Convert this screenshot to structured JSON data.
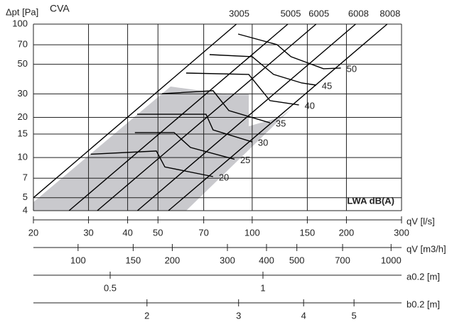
{
  "chart_data": {
    "type": "line",
    "title": "CVA",
    "ylabel": "Δpt [Pa]",
    "xlabel": "qV [l/s]",
    "annotation": "LWA dB(A)",
    "xscale": "log",
    "yscale": "log",
    "grid": true,
    "color": "#000000",
    "xlim": [
      20,
      300
    ],
    "ylim": [
      4,
      100
    ],
    "xticks": [
      20,
      30,
      40,
      50,
      70,
      100,
      150,
      200,
      300
    ],
    "yticks": [
      4,
      5,
      7,
      10,
      15,
      20,
      30,
      50,
      70,
      100
    ],
    "series": [
      {
        "name": "3005",
        "x": [
          20,
          89
        ],
        "values": [
          5,
          100
        ]
      },
      {
        "name": "5005",
        "x": [
          26,
          130
        ],
        "values": [
          4,
          100
        ]
      },
      {
        "name": "6005",
        "x": [
          32,
          160
        ],
        "values": [
          4,
          100
        ]
      },
      {
        "name": "6008",
        "x": [
          43,
          214
        ],
        "values": [
          4,
          100
        ]
      },
      {
        "name": "8008",
        "x": [
          54,
          270
        ],
        "values": [
          4,
          100
        ]
      }
    ],
    "contours": [
      {
        "name": "20",
        "x": [
          30.5,
          49.4,
          52.6,
          75.0
        ],
        "values": [
          10.6,
          11.2,
          8.5,
          7.2
        ]
      },
      {
        "name": "25",
        "x": [
          42.2,
          56.3,
          63.5,
          87.8
        ],
        "values": [
          15.4,
          15.4,
          11.9,
          9.7
        ]
      },
      {
        "name": "30",
        "x": [
          42.9,
          71.2,
          75.0,
          100
        ],
        "values": [
          21.1,
          21.1,
          16.1,
          13.1
        ]
      },
      {
        "name": "35",
        "x": [
          51.5,
          75.0,
          84.2,
          114
        ],
        "values": [
          30.1,
          31.7,
          22.5,
          18.2
        ]
      },
      {
        "name": "40",
        "x": [
          61.5,
          97.5,
          114,
          141
        ],
        "values": [
          43.0,
          42.0,
          26.7,
          24.8
        ]
      },
      {
        "name": "45",
        "x": [
          73.1,
          100,
          117,
          144,
          160
        ],
        "values": [
          59.1,
          57.0,
          42.0,
          36.2,
          34.9
        ]
      },
      {
        "name": "50",
        "x": [
          90.2,
          120,
          133,
          169,
          192
        ],
        "values": [
          84.3,
          70.2,
          57.0,
          46.3,
          46.9
        ]
      }
    ],
    "secondary_axes": [
      {
        "label": "qV [m3/h]",
        "xlim": [
          72,
          1080
        ],
        "xticks": [
          100,
          150,
          200,
          300,
          400,
          500,
          700,
          1000
        ]
      },
      {
        "label": "a0.2 [m]",
        "xlim": [
          0.353,
          1.875
        ],
        "xticks": [
          0.5,
          1
        ]
      },
      {
        "label": "b0.2 [m]",
        "xlim": [
          1.21,
          6.17
        ],
        "xticks": [
          2,
          3,
          4,
          5
        ]
      }
    ]
  }
}
